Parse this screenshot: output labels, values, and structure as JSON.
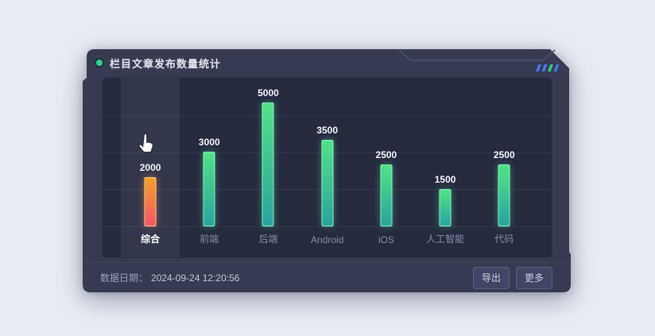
{
  "panel": {
    "title": "栏目文章发布数量统计",
    "dot_color": "#33d184",
    "decor_slashes": [
      "#4a78e8",
      "#4a78e8",
      "#35c77d",
      "#4a78e8"
    ]
  },
  "chart_data": {
    "type": "bar",
    "title": "栏目文章发布数量统计",
    "categories": [
      "综合",
      "前端",
      "后端",
      "Android",
      "iOS",
      "人工智能",
      "代码"
    ],
    "values": [
      2000,
      3000,
      5000,
      3500,
      2500,
      1500,
      2500
    ],
    "xlabel": "",
    "ylabel": "",
    "ylim": [
      0,
      6000
    ],
    "grid_interval": 1500,
    "grid": true,
    "legend": false,
    "value_labels": true,
    "highlighted_category": "综合",
    "bar_colors": {
      "default_top": "#50e287",
      "default_bottom": "#2aa39f",
      "highlight_top": "#f5a028",
      "highlight_bottom": "#f55569"
    }
  },
  "footer": {
    "date_label": "数据日期：",
    "date_value": "2024-09-24 12:20:56",
    "buttons": [
      {
        "label": "导出"
      },
      {
        "label": "更多"
      }
    ]
  },
  "colors": {
    "page_bg": "#e9ebf4",
    "panel_bg": "#363b52",
    "chart_bg": "#262b40",
    "grid_line": "#323850",
    "accent_green": "#33d184"
  }
}
